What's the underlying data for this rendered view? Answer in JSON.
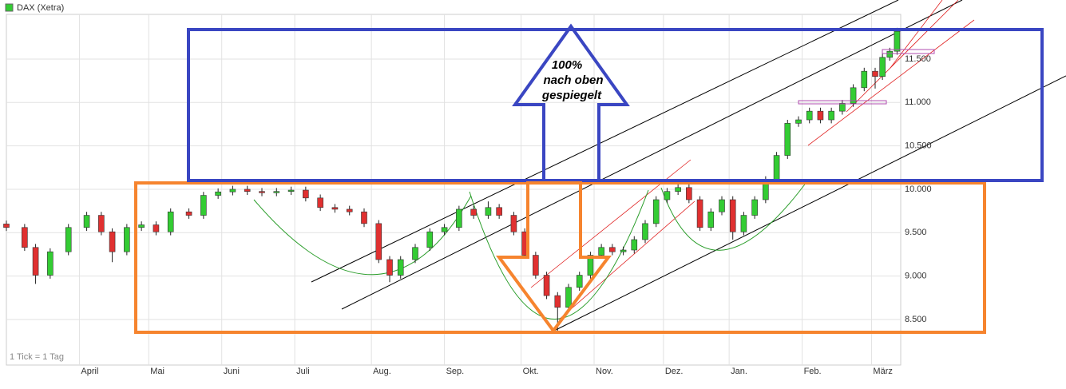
{
  "chart_data": {
    "type": "candlestick",
    "legend": "DAX (Xetra)",
    "color": "#33cc33",
    "up_color": "#33cc33",
    "down_color": "#e03030",
    "footnote": "1 Tick = 1 Tag",
    "annotation": [
      "100%",
      "nach oben",
      "gespiegelt"
    ],
    "grid": true,
    "xlim": [
      0,
      245
    ],
    "xticks": [
      {
        "value": 20,
        "label": "April"
      },
      {
        "value": 39,
        "label": "Mai"
      },
      {
        "value": 59,
        "label": "Juni"
      },
      {
        "value": 79,
        "label": "Juli"
      },
      {
        "value": 100,
        "label": "Aug."
      },
      {
        "value": 120,
        "label": "Sep."
      },
      {
        "value": 141,
        "label": "Okt."
      },
      {
        "value": 161,
        "label": "Nov."
      },
      {
        "value": 180,
        "label": "Dez."
      },
      {
        "value": 198,
        "label": "Jan."
      },
      {
        "value": 218,
        "label": "Feb."
      },
      {
        "value": 237,
        "label": "März"
      }
    ],
    "ylim": [
      7975,
      12015
    ],
    "yticks": [
      {
        "value": 8500,
        "label": "8.500"
      },
      {
        "value": 9000,
        "label": "9.000"
      },
      {
        "value": 9500,
        "label": "9.500"
      },
      {
        "value": 10000,
        "label": "10.000"
      },
      {
        "value": 10500,
        "label": "10.500"
      },
      {
        "value": 11000,
        "label": "11.000"
      },
      {
        "value": 11500,
        "label": "11.500"
      }
    ],
    "x": [
      0,
      5,
      8,
      12,
      17,
      22,
      26,
      29,
      33,
      37,
      41,
      45,
      50,
      54,
      58,
      62,
      66,
      70,
      74,
      78,
      82,
      86,
      90,
      94,
      98,
      102,
      105,
      108,
      112,
      116,
      120,
      124,
      128,
      132,
      135,
      139,
      142,
      145,
      148,
      151,
      154,
      157,
      160,
      163,
      166,
      169,
      172,
      175,
      178,
      181,
      184,
      187,
      190,
      193,
      196,
      199,
      202,
      205,
      208,
      211,
      214,
      217,
      220,
      223,
      226,
      229,
      232,
      235,
      238,
      240,
      242,
      244
    ],
    "open": [
      9600,
      9560,
      9330,
      9010,
      9280,
      9560,
      9700,
      9510,
      9280,
      9560,
      9590,
      9510,
      9740,
      9700,
      9930,
      9970,
      10000,
      9975,
      9960,
      9975,
      9990,
      9900,
      9790,
      9770,
      9740,
      9605,
      9190,
      9010,
      9190,
      9330,
      9510,
      9560,
      9770,
      9700,
      9790,
      9700,
      9510,
      9240,
      9010,
      8775,
      8640,
      8870,
      9010,
      9240,
      9330,
      9280,
      9300,
      9420,
      9605,
      9880,
      9975,
      10020,
      9880,
      9560,
      9740,
      9880,
      9510,
      9700,
      9880,
      10110,
      10390,
      10760,
      10800,
      10900,
      10800,
      10900,
      10990,
      11170,
      11360,
      11300,
      11520,
      11590
    ],
    "high": [
      9640,
      9600,
      9370,
      9320,
      9600,
      9740,
      9740,
      9550,
      9600,
      9630,
      9630,
      9780,
      9780,
      9970,
      10010,
      10040,
      10040,
      10015,
      10015,
      10030,
      10030,
      9940,
      9830,
      9810,
      9780,
      9645,
      9230,
      9230,
      9370,
      9550,
      9600,
      9810,
      9810,
      9860,
      9830,
      9740,
      9550,
      9280,
      9050,
      8815,
      8910,
      9050,
      9280,
      9370,
      9370,
      9340,
      9460,
      9645,
      9920,
      10015,
      10060,
      10060,
      9920,
      9780,
      9920,
      9920,
      9740,
      9920,
      10150,
      10430,
      10800,
      10840,
      10940,
      10940,
      10940,
      11030,
      11210,
      11400,
      11400,
      11560,
      11630,
      11860
    ],
    "low": [
      9520,
      9290,
      8910,
      8970,
      9240,
      9520,
      9470,
      9160,
      9240,
      9520,
      9470,
      9470,
      9660,
      9660,
      9890,
      9930,
      9935,
      9920,
      9920,
      9935,
      9860,
      9750,
      9730,
      9700,
      9565,
      9150,
      8930,
      8970,
      9150,
      9290,
      9470,
      9520,
      9660,
      9660,
      9660,
      9470,
      9200,
      8970,
      8735,
      8360,
      8600,
      8830,
      8970,
      9200,
      9240,
      9240,
      9260,
      9380,
      9565,
      9840,
      9935,
      9840,
      9520,
      9520,
      9700,
      9420,
      9470,
      9660,
      9840,
      10070,
      10350,
      10720,
      10760,
      10760,
      10760,
      10860,
      10950,
      11130,
      11160,
      11260,
      11480,
      11550
    ],
    "close": [
      9560,
      9330,
      9010,
      9280,
      9560,
      9700,
      9510,
      9280,
      9560,
      9590,
      9510,
      9740,
      9700,
      9930,
      9970,
      10000,
      9975,
      9960,
      9975,
      9990,
      9900,
      9790,
      9770,
      9740,
      9605,
      9190,
      9010,
      9190,
      9330,
      9510,
      9560,
      9770,
      9700,
      9790,
      9700,
      9510,
      9240,
      9010,
      8775,
      8640,
      8870,
      9010,
      9240,
      9330,
      9280,
      9300,
      9420,
      9605,
      9880,
      9975,
      10020,
      9880,
      9560,
      9740,
      9880,
      9510,
      9700,
      9880,
      10110,
      10390,
      10760,
      10800,
      10900,
      10800,
      10900,
      10990,
      11170,
      11360,
      11300,
      11520,
      11590,
      11820
    ]
  }
}
